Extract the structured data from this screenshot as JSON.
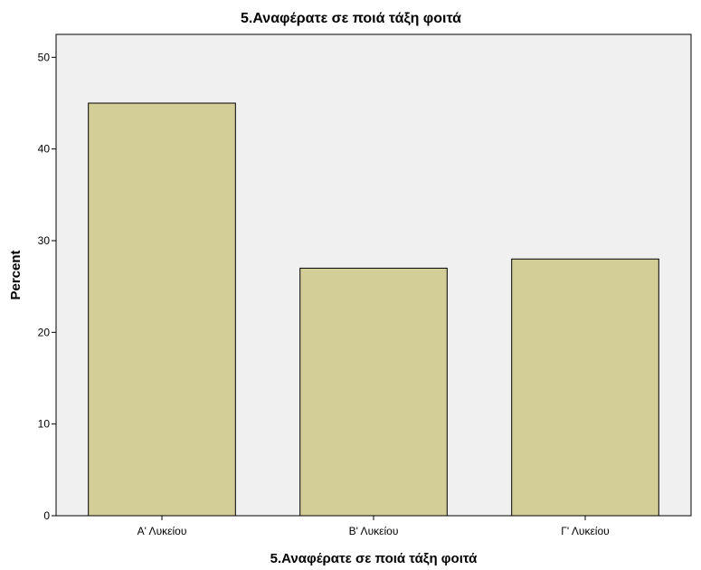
{
  "chart_data": {
    "type": "bar",
    "title": "5.Αναφέρατε σε ποιά τάξη φοιτά",
    "xlabel": "5.Αναφέρατε σε ποιά τάξη φοιτά",
    "ylabel": "Percent",
    "categories": [
      "Α' Λυκείου",
      "Β' Λυκείου",
      "Γ' Λυκείου"
    ],
    "values": [
      45,
      27,
      28
    ],
    "ylim": [
      0,
      52.5
    ],
    "yticks": [
      "0",
      "10",
      "20",
      "30",
      "40",
      "50"
    ],
    "grid": false,
    "colors": {
      "bar": "#d3cd97",
      "bar_edge": "#000000",
      "plot_background": "#f0f0f0"
    }
  }
}
